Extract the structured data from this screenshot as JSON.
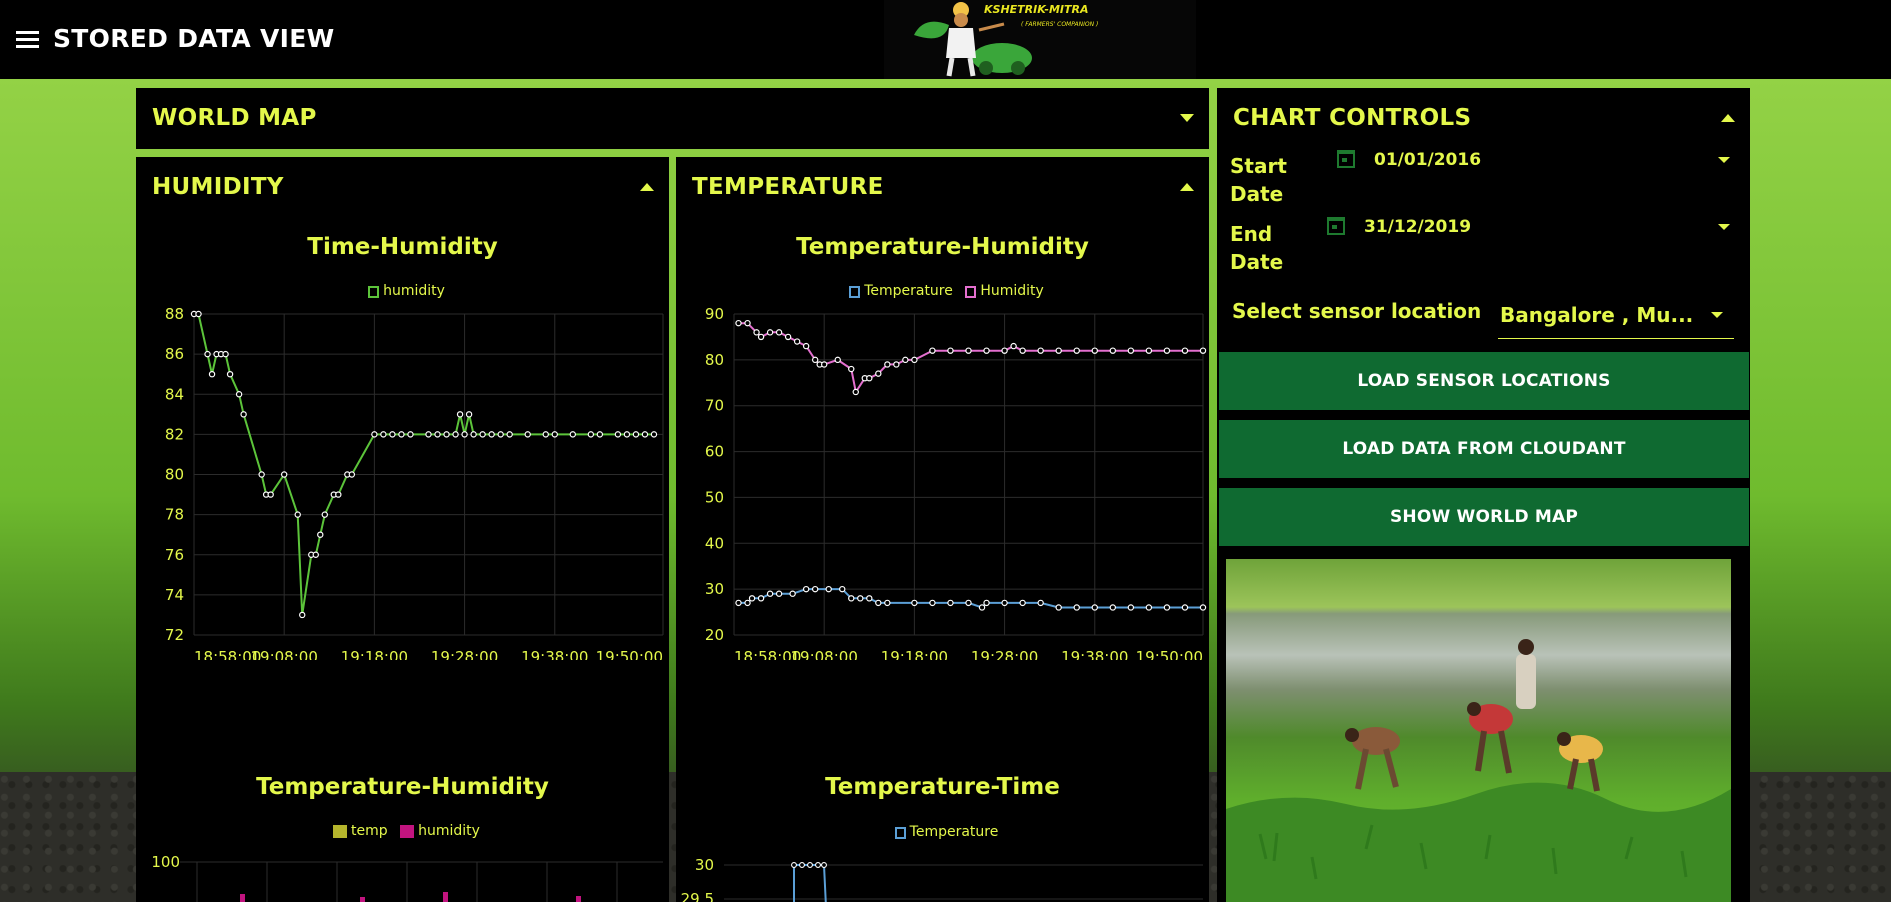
{
  "header": {
    "title": "STORED DATA VIEW",
    "logo_name": "KSHETRIK-MITRA",
    "logo_tagline": "( FARMERS' COMPANION )"
  },
  "panels": {
    "world_map": {
      "title": "WORLD MAP"
    },
    "humidity": {
      "title": "HUMIDITY"
    },
    "temperature": {
      "title": "TEMPERATURE"
    },
    "chart_controls": {
      "title": "CHART CONTROLS"
    }
  },
  "controls": {
    "start_date_label": "Start\nDate",
    "start_date": "01/01/2016",
    "end_date_label": "End\nDate",
    "end_date": "31/12/2019",
    "sensor_location_label": "Select sensor location",
    "sensor_location_value": "Bangalore , Mu...",
    "buttons": {
      "load_sensor_locations": "LOAD SENSOR LOCATIONS",
      "load_data_from_cloudant": "LOAD DATA FROM CLOUDANT",
      "show_world_map": "SHOW WORLD MAP"
    }
  },
  "colors": {
    "accent_text": "#e4f84b",
    "button_bg": "#0f6a31",
    "panel_bg": "#000000",
    "humidity_line": "#5cc43a",
    "temperature_line": "#5b9fd6",
    "humidity_pink": "#e46fcf",
    "temp_bar": "#b5b52c",
    "humidity_bar": "#c2147f"
  },
  "chart_data": [
    {
      "type": "line",
      "title": "Time-Humidity",
      "series": [
        {
          "name": "humidity",
          "color": "#5cc43a",
          "values": [
            {
              "t": "18:58:00",
              "y": 88
            },
            {
              "t": "18:58:30",
              "y": 88
            },
            {
              "t": "18:59:30",
              "y": 86
            },
            {
              "t": "19:00:00",
              "y": 85
            },
            {
              "t": "19:00:30",
              "y": 86
            },
            {
              "t": "19:01:00",
              "y": 86
            },
            {
              "t": "19:01:30",
              "y": 86
            },
            {
              "t": "19:02:00",
              "y": 85
            },
            {
              "t": "19:03:00",
              "y": 84
            },
            {
              "t": "19:03:30",
              "y": 83
            },
            {
              "t": "19:05:30",
              "y": 80
            },
            {
              "t": "19:06:00",
              "y": 79
            },
            {
              "t": "19:06:30",
              "y": 79
            },
            {
              "t": "19:08:00",
              "y": 80
            },
            {
              "t": "19:09:30",
              "y": 78
            },
            {
              "t": "19:10:00",
              "y": 73
            },
            {
              "t": "19:11:00",
              "y": 76
            },
            {
              "t": "19:11:30",
              "y": 76
            },
            {
              "t": "19:12:00",
              "y": 77
            },
            {
              "t": "19:12:30",
              "y": 78
            },
            {
              "t": "19:13:30",
              "y": 79
            },
            {
              "t": "19:14:00",
              "y": 79
            },
            {
              "t": "19:15:00",
              "y": 80
            },
            {
              "t": "19:15:30",
              "y": 80
            },
            {
              "t": "19:18:00",
              "y": 82
            },
            {
              "t": "19:19:00",
              "y": 82
            },
            {
              "t": "19:20:00",
              "y": 82
            },
            {
              "t": "19:21:00",
              "y": 82
            },
            {
              "t": "19:22:00",
              "y": 82
            },
            {
              "t": "19:24:00",
              "y": 82
            },
            {
              "t": "19:25:00",
              "y": 82
            },
            {
              "t": "19:26:00",
              "y": 82
            },
            {
              "t": "19:27:00",
              "y": 82
            },
            {
              "t": "19:27:30",
              "y": 83
            },
            {
              "t": "19:28:00",
              "y": 82
            },
            {
              "t": "19:28:30",
              "y": 83
            },
            {
              "t": "19:29:00",
              "y": 82
            },
            {
              "t": "19:30:00",
              "y": 82
            },
            {
              "t": "19:31:00",
              "y": 82
            },
            {
              "t": "19:32:00",
              "y": 82
            },
            {
              "t": "19:33:00",
              "y": 82
            },
            {
              "t": "19:35:00",
              "y": 82
            },
            {
              "t": "19:37:00",
              "y": 82
            },
            {
              "t": "19:38:00",
              "y": 82
            },
            {
              "t": "19:40:00",
              "y": 82
            },
            {
              "t": "19:42:00",
              "y": 82
            },
            {
              "t": "19:43:00",
              "y": 82
            },
            {
              "t": "19:45:00",
              "y": 82
            },
            {
              "t": "19:46:00",
              "y": 82
            },
            {
              "t": "19:47:00",
              "y": 82
            },
            {
              "t": "19:48:00",
              "y": 82
            },
            {
              "t": "19:49:00",
              "y": 82
            }
          ]
        }
      ],
      "legend": [
        "humidity"
      ],
      "xlabel": "",
      "ylabel": "",
      "x_ticks": [
        "18:58:00",
        "19:08:00",
        "19:18:00",
        "19:28:00",
        "19:38:00",
        "19:50:00"
      ],
      "x_range": [
        "18:58:00",
        "19:50:00"
      ],
      "y_ticks": [
        72,
        74,
        76,
        78,
        80,
        82,
        84,
        86,
        88
      ],
      "ylim": [
        72,
        88
      ],
      "grid": true,
      "legend_position": "top"
    },
    {
      "type": "line",
      "title": "Temperature-Humidity",
      "series": [
        {
          "name": "Temperature",
          "color": "#5b9fd6",
          "values": [
            {
              "t": "18:58:30",
              "y": 27
            },
            {
              "t": "18:59:30",
              "y": 27
            },
            {
              "t": "19:00:00",
              "y": 28
            },
            {
              "t": "19:01:00",
              "y": 28
            },
            {
              "t": "19:02:00",
              "y": 29
            },
            {
              "t": "19:03:00",
              "y": 29
            },
            {
              "t": "19:04:30",
              "y": 29
            },
            {
              "t": "19:06:00",
              "y": 30
            },
            {
              "t": "19:07:00",
              "y": 30
            },
            {
              "t": "19:08:30",
              "y": 30
            },
            {
              "t": "19:10:00",
              "y": 30
            },
            {
              "t": "19:11:00",
              "y": 28
            },
            {
              "t": "19:12:00",
              "y": 28
            },
            {
              "t": "19:13:00",
              "y": 28
            },
            {
              "t": "19:14:00",
              "y": 27
            },
            {
              "t": "19:15:00",
              "y": 27
            },
            {
              "t": "19:18:00",
              "y": 27
            },
            {
              "t": "19:20:00",
              "y": 27
            },
            {
              "t": "19:22:00",
              "y": 27
            },
            {
              "t": "19:24:00",
              "y": 27
            },
            {
              "t": "19:25:30",
              "y": 26
            },
            {
              "t": "19:26:00",
              "y": 27
            },
            {
              "t": "19:28:00",
              "y": 27
            },
            {
              "t": "19:30:00",
              "y": 27
            },
            {
              "t": "19:32:00",
              "y": 27
            },
            {
              "t": "19:34:00",
              "y": 26
            },
            {
              "t": "19:36:00",
              "y": 26
            },
            {
              "t": "19:38:00",
              "y": 26
            },
            {
              "t": "19:40:00",
              "y": 26
            },
            {
              "t": "19:42:00",
              "y": 26
            },
            {
              "t": "19:44:00",
              "y": 26
            },
            {
              "t": "19:46:00",
              "y": 26
            },
            {
              "t": "19:48:00",
              "y": 26
            },
            {
              "t": "19:50:00",
              "y": 26
            }
          ]
        },
        {
          "name": "Humidity",
          "color": "#e46fcf",
          "values": [
            {
              "t": "18:58:30",
              "y": 88
            },
            {
              "t": "18:59:30",
              "y": 88
            },
            {
              "t": "19:00:30",
              "y": 86
            },
            {
              "t": "19:01:00",
              "y": 85
            },
            {
              "t": "19:02:00",
              "y": 86
            },
            {
              "t": "19:03:00",
              "y": 86
            },
            {
              "t": "19:04:00",
              "y": 85
            },
            {
              "t": "19:05:00",
              "y": 84
            },
            {
              "t": "19:06:00",
              "y": 83
            },
            {
              "t": "19:07:00",
              "y": 80
            },
            {
              "t": "19:07:30",
              "y": 79
            },
            {
              "t": "19:08:00",
              "y": 79
            },
            {
              "t": "19:09:30",
              "y": 80
            },
            {
              "t": "19:11:00",
              "y": 78
            },
            {
              "t": "19:11:30",
              "y": 73
            },
            {
              "t": "19:12:30",
              "y": 76
            },
            {
              "t": "19:13:00",
              "y": 76
            },
            {
              "t": "19:14:00",
              "y": 77
            },
            {
              "t": "19:15:00",
              "y": 79
            },
            {
              "t": "19:16:00",
              "y": 79
            },
            {
              "t": "19:17:00",
              "y": 80
            },
            {
              "t": "19:18:00",
              "y": 80
            },
            {
              "t": "19:20:00",
              "y": 82
            },
            {
              "t": "19:22:00",
              "y": 82
            },
            {
              "t": "19:24:00",
              "y": 82
            },
            {
              "t": "19:26:00",
              "y": 82
            },
            {
              "t": "19:28:00",
              "y": 82
            },
            {
              "t": "19:29:00",
              "y": 83
            },
            {
              "t": "19:30:00",
              "y": 82
            },
            {
              "t": "19:32:00",
              "y": 82
            },
            {
              "t": "19:34:00",
              "y": 82
            },
            {
              "t": "19:36:00",
              "y": 82
            },
            {
              "t": "19:38:00",
              "y": 82
            },
            {
              "t": "19:40:00",
              "y": 82
            },
            {
              "t": "19:42:00",
              "y": 82
            },
            {
              "t": "19:44:00",
              "y": 82
            },
            {
              "t": "19:46:00",
              "y": 82
            },
            {
              "t": "19:48:00",
              "y": 82
            },
            {
              "t": "19:50:00",
              "y": 82
            }
          ]
        }
      ],
      "legend": [
        "Temperature",
        "Humidity"
      ],
      "xlabel": "",
      "ylabel": "",
      "x_ticks": [
        "18:58:00",
        "19:08:00",
        "19:18:00",
        "19:28:00",
        "19:38:00",
        "19:50:00"
      ],
      "x_range": [
        "18:58:00",
        "19:50:00"
      ],
      "y_ticks": [
        20,
        30,
        40,
        50,
        60,
        70,
        80,
        90
      ],
      "ylim": [
        20,
        90
      ],
      "grid": true,
      "legend_position": "top"
    },
    {
      "type": "bar",
      "title": "Temperature-Humidity",
      "legend": [
        "temp",
        "humidity"
      ],
      "series_colors": {
        "temp": "#b5b52c",
        "humidity": "#c2147f"
      },
      "y_ticks_visible": [
        100
      ],
      "grid": true,
      "legend_position": "top"
    },
    {
      "type": "line",
      "title": "Temperature-Time",
      "series": [
        {
          "name": "Temperature",
          "color": "#5b9fd6",
          "values": [
            {
              "t": "19:06:00",
              "y": 30
            },
            {
              "t": "19:07:00",
              "y": 30
            },
            {
              "t": "19:08:00",
              "y": 30
            },
            {
              "t": "19:09:00",
              "y": 30
            },
            {
              "t": "19:10:00",
              "y": 30
            }
          ]
        }
      ],
      "legend": [
        "Temperature"
      ],
      "y_ticks_visible": [
        30,
        29.5
      ],
      "grid": true,
      "legend_position": "top"
    }
  ]
}
